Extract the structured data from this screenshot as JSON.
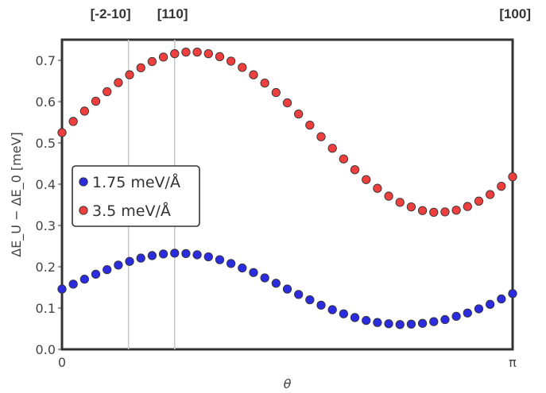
{
  "chart_data": {
    "type": "scatter",
    "xlabel": "θ",
    "ylabel": "ΔE_U − ΔE_0 [meV]",
    "xlim": [
      0,
      3.14159
    ],
    "ylim": [
      0,
      0.75
    ],
    "x_tick_labels": [
      "0",
      "π"
    ],
    "y_ticks": [
      0.0,
      0.1,
      0.2,
      0.3,
      0.4,
      0.5,
      0.6,
      0.7
    ],
    "y_tick_labels": [
      "0.0",
      "0.1",
      "0.2",
      "0.3",
      "0.4",
      "0.5",
      "0.6",
      "0.7"
    ],
    "top_annotations": [
      {
        "label": "[-2-10]",
        "x": 0.4636
      },
      {
        "label": "[110]",
        "x": 0.7854
      },
      {
        "label": "[100]",
        "x": 3.14159
      }
    ],
    "vertical_lines_x": [
      0.4636,
      0.7854
    ],
    "legend_position": "center-left",
    "grid": false,
    "series": [
      {
        "name": "1.75 meV/Å",
        "color": "#2b2be0",
        "x": [
          0.0,
          0.0785,
          0.1571,
          0.2356,
          0.3142,
          0.3927,
          0.4712,
          0.5498,
          0.6283,
          0.7069,
          0.7854,
          0.864,
          0.9425,
          1.021,
          1.0996,
          1.1781,
          1.2566,
          1.3352,
          1.4137,
          1.4923,
          1.5708,
          1.6493,
          1.7279,
          1.8064,
          1.885,
          1.9635,
          2.042,
          2.1206,
          2.1991,
          2.2777,
          2.3562,
          2.4347,
          2.5133,
          2.5918,
          2.6704,
          2.7489,
          2.8274,
          2.906,
          2.9845,
          3.0631,
          3.1416
        ],
        "values": [
          0.146,
          0.158,
          0.17,
          0.182,
          0.193,
          0.204,
          0.213,
          0.221,
          0.227,
          0.231,
          0.233,
          0.232,
          0.229,
          0.224,
          0.217,
          0.208,
          0.197,
          0.186,
          0.173,
          0.16,
          0.146,
          0.133,
          0.12,
          0.107,
          0.096,
          0.086,
          0.077,
          0.07,
          0.065,
          0.062,
          0.06,
          0.061,
          0.063,
          0.067,
          0.072,
          0.08,
          0.088,
          0.098,
          0.109,
          0.122,
          0.135
        ]
      },
      {
        "name": "3.5 meV/Å",
        "color": "#ee3f3f",
        "x": [
          0.0,
          0.0785,
          0.1571,
          0.2356,
          0.3142,
          0.3927,
          0.4712,
          0.5498,
          0.6283,
          0.7069,
          0.7854,
          0.864,
          0.9425,
          1.021,
          1.0996,
          1.1781,
          1.2566,
          1.3352,
          1.4137,
          1.4923,
          1.5708,
          1.6493,
          1.7279,
          1.8064,
          1.885,
          1.9635,
          2.042,
          2.1206,
          2.1991,
          2.2777,
          2.3562,
          2.4347,
          2.5133,
          2.5918,
          2.6704,
          2.7489,
          2.8274,
          2.906,
          2.9845,
          3.0631,
          3.1416
        ],
        "values": [
          0.525,
          0.552,
          0.577,
          0.601,
          0.624,
          0.646,
          0.665,
          0.682,
          0.697,
          0.708,
          0.716,
          0.72,
          0.72,
          0.716,
          0.709,
          0.698,
          0.683,
          0.665,
          0.645,
          0.622,
          0.597,
          0.57,
          0.543,
          0.515,
          0.487,
          0.461,
          0.435,
          0.411,
          0.39,
          0.371,
          0.356,
          0.345,
          0.336,
          0.332,
          0.333,
          0.337,
          0.346,
          0.359,
          0.375,
          0.395,
          0.418
        ]
      }
    ]
  }
}
